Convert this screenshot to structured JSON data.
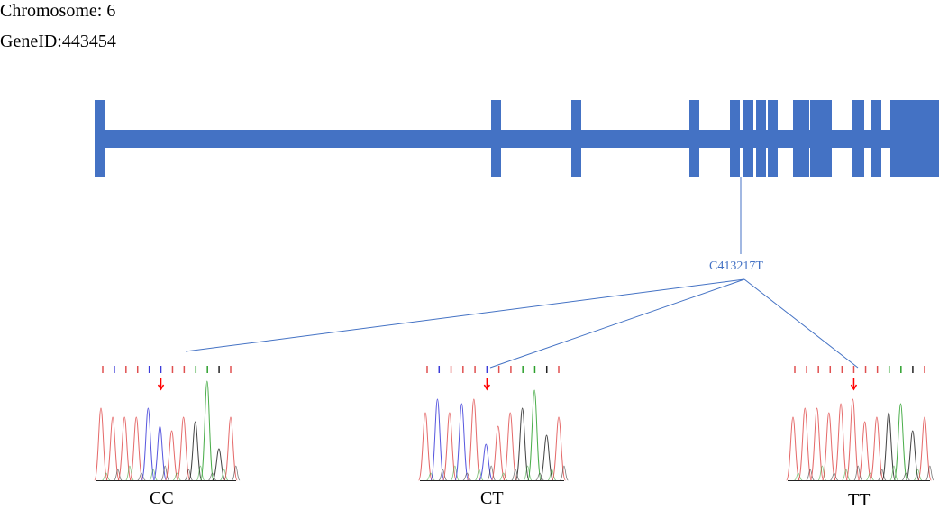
{
  "header": {
    "chromosome": "Chromosome: 6",
    "gene_id": "GeneID:443454"
  },
  "gene_structure": {
    "color": "#4472C4",
    "exon_count": 13
  },
  "snp": {
    "label": "C413217T",
    "line_color": "#4472C4"
  },
  "genotypes": [
    {
      "label": "CC"
    },
    {
      "label": "CT"
    },
    {
      "label": "TT"
    }
  ],
  "chromatogram_colors": {
    "A": "#2ca02c",
    "C": "#3b3bd9",
    "G": "#222222",
    "T": "#e05050",
    "marker": "#ff0000"
  }
}
